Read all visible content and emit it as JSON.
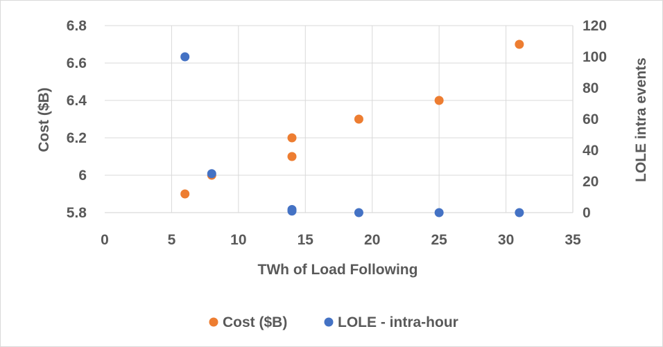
{
  "chart_data": {
    "type": "scatter",
    "xlabel": "TWh of Load Following",
    "ylabel": "Cost ($B)",
    "y2label": "LOLE intra events",
    "xlim": [
      0,
      35
    ],
    "ylim": [
      5.8,
      6.8
    ],
    "y2lim": [
      0,
      120
    ],
    "x_ticks": [
      0,
      5,
      10,
      15,
      20,
      25,
      30,
      35
    ],
    "y_ticks": [
      5.8,
      6,
      6.2,
      6.4,
      6.6,
      6.8
    ],
    "y2_ticks": [
      0,
      20,
      40,
      60,
      80,
      100,
      120
    ],
    "x_tick_labels": [
      "0",
      "5",
      "10",
      "15",
      "20",
      "25",
      "30",
      "35"
    ],
    "y_tick_labels": [
      "5.8",
      "6",
      "6.2",
      "6.4",
      "6.6",
      "6.8"
    ],
    "y2_tick_labels": [
      "0",
      "20",
      "40",
      "60",
      "80",
      "100",
      "120"
    ],
    "grid": true,
    "legend_position": "bottom",
    "series": [
      {
        "name": "Cost ($B)",
        "axis": "left",
        "color": "#ed7d31",
        "points": [
          {
            "x": 6,
            "y": 5.9
          },
          {
            "x": 8,
            "y": 6.0
          },
          {
            "x": 14,
            "y": 6.1
          },
          {
            "x": 14,
            "y": 6.2
          },
          {
            "x": 19,
            "y": 6.3
          },
          {
            "x": 25,
            "y": 6.4
          },
          {
            "x": 31,
            "y": 6.7
          }
        ]
      },
      {
        "name": "LOLE - intra-hour",
        "axis": "right",
        "color": "#4472c4",
        "points": [
          {
            "x": 6,
            "y": 100
          },
          {
            "x": 8,
            "y": 25
          },
          {
            "x": 14,
            "y": 1
          },
          {
            "x": 14,
            "y": 2
          },
          {
            "x": 19,
            "y": 0
          },
          {
            "x": 25,
            "y": 0
          },
          {
            "x": 31,
            "y": 0
          }
        ]
      }
    ]
  }
}
